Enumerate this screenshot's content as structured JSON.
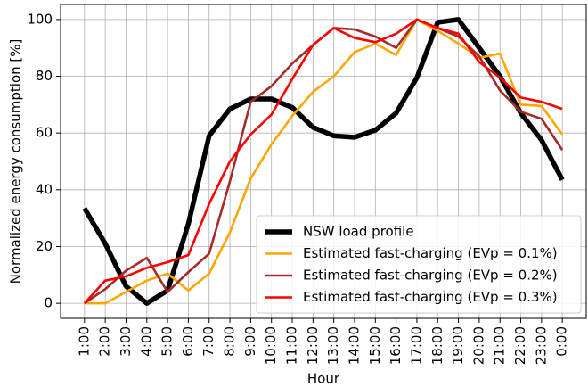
{
  "chart_data": {
    "type": "line",
    "x_label": "Hour",
    "y_label": "Normalized energy consumption [%]",
    "categories": [
      "1:00",
      "2:00",
      "3:00",
      "4:00",
      "5:00",
      "6:00",
      "7:00",
      "8:00",
      "9:00",
      "10:00",
      "11:00",
      "12:00",
      "13:00",
      "14:00",
      "15:00",
      "16:00",
      "17:00",
      "18:00",
      "19:00",
      "20:00",
      "21:00",
      "22:00",
      "23:00",
      "0:00"
    ],
    "series": [
      {
        "name": "NSW load profile",
        "color": "#000000",
        "values": [
          33.5,
          21,
          6,
          0,
          4.5,
          28,
          59,
          68.5,
          72,
          72,
          69,
          62,
          59,
          58.5,
          61,
          67,
          79.5,
          99,
          100,
          90,
          80,
          67,
          57.5,
          43.5
        ]
      },
      {
        "name": "Estimated fast-charging (EVp = 0.1%)",
        "color": "#ffa500",
        "values": [
          0,
          0,
          4,
          8,
          10.5,
          4.5,
          10.5,
          25,
          44,
          56,
          66,
          74.5,
          80,
          88.5,
          91.5,
          87.5,
          100,
          96,
          91.5,
          86.5,
          88,
          70,
          69.5,
          59.5
        ]
      },
      {
        "name": "Estimated fast-charging (EVp = 0.2%)",
        "color": "#a52a2a",
        "values": [
          0,
          5,
          11.5,
          16,
          4,
          11,
          17.5,
          43,
          71,
          76.5,
          84.5,
          91,
          97,
          96.5,
          94,
          90,
          100,
          97,
          94,
          87,
          75,
          67.5,
          65,
          54
        ]
      },
      {
        "name": "Estimated fast-charging (EVp = 0.3%)",
        "color": "#ff0000",
        "values": [
          0,
          8,
          9.5,
          12.5,
          14.5,
          17,
          35,
          50,
          59.5,
          66.5,
          79,
          91,
          97,
          93.5,
          92,
          95,
          100,
          97,
          95,
          85,
          79.5,
          72.5,
          71,
          68.5
        ]
      }
    ],
    "ylim": [
      -5.3,
      105.3
    ],
    "yticks": [
      0,
      20,
      40,
      60,
      80,
      100
    ],
    "grid": true,
    "legend": "lower right"
  }
}
